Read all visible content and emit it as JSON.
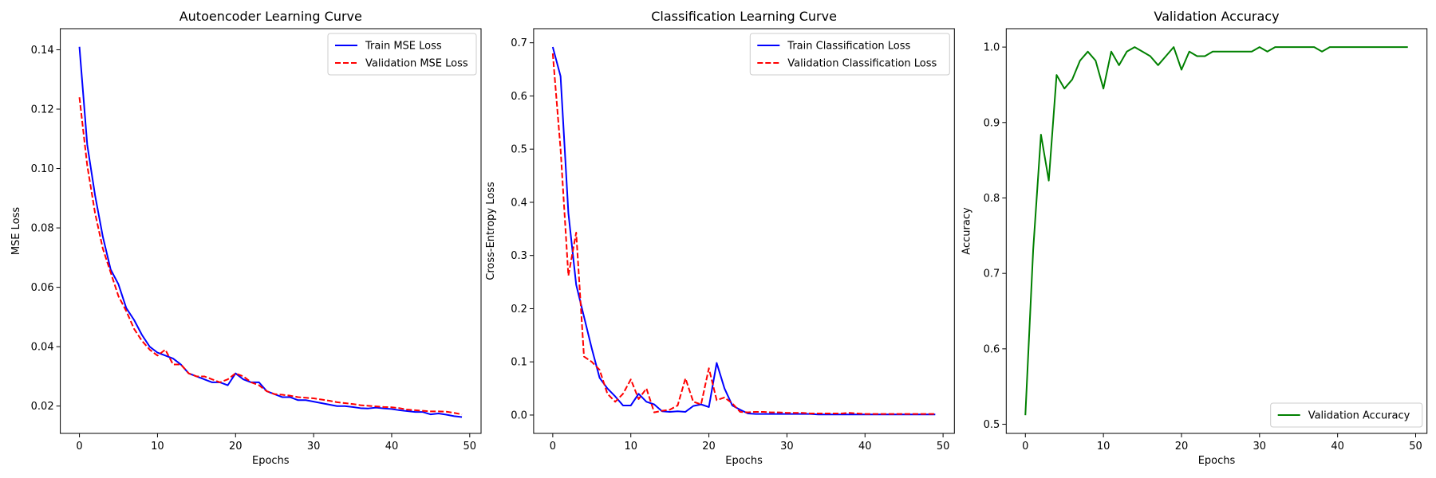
{
  "chart_data": [
    {
      "type": "line",
      "title": "Autoencoder Learning Curve",
      "xlabel": "Epochs",
      "ylabel": "MSE Loss",
      "xlim": [
        -2.45,
        51.45
      ],
      "ylim": [
        0.0108,
        0.1471
      ],
      "xticks": [
        0,
        10,
        20,
        30,
        40,
        50
      ],
      "yticks": [
        0.02,
        0.04,
        0.06,
        0.08,
        0.1,
        0.12,
        0.14
      ],
      "ytick_labels": [
        "0.02",
        "0.04",
        "0.06",
        "0.08",
        "0.10",
        "0.12",
        "0.14"
      ],
      "legend_position": "upper right",
      "series": [
        {
          "name": "Train MSE Loss",
          "color": "#0000ff",
          "dash": "solid",
          "x": [
            0,
            1,
            2,
            3,
            4,
            5,
            6,
            7,
            8,
            9,
            10,
            11,
            12,
            13,
            14,
            15,
            16,
            17,
            18,
            19,
            20,
            21,
            22,
            23,
            24,
            25,
            26,
            27,
            28,
            29,
            30,
            31,
            32,
            33,
            34,
            35,
            36,
            37,
            38,
            39,
            40,
            41,
            42,
            43,
            44,
            45,
            46,
            47,
            48,
            49
          ],
          "y": [
            0.141,
            0.108,
            0.091,
            0.077,
            0.066,
            0.061,
            0.053,
            0.049,
            0.044,
            0.04,
            0.038,
            0.037,
            0.036,
            0.034,
            0.031,
            0.03,
            0.029,
            0.028,
            0.028,
            0.027,
            0.031,
            0.029,
            0.028,
            0.028,
            0.025,
            0.024,
            0.023,
            0.023,
            0.022,
            0.022,
            0.0215,
            0.021,
            0.0205,
            0.02,
            0.02,
            0.0197,
            0.0193,
            0.0192,
            0.0195,
            0.0192,
            0.019,
            0.0186,
            0.0183,
            0.018,
            0.018,
            0.0172,
            0.0175,
            0.0171,
            0.0166,
            0.0163
          ]
        },
        {
          "name": "Validation MSE Loss",
          "color": "#ff0000",
          "dash": "dashed",
          "x": [
            0,
            1,
            2,
            3,
            4,
            5,
            6,
            7,
            8,
            9,
            10,
            11,
            12,
            13,
            14,
            15,
            16,
            17,
            18,
            19,
            20,
            21,
            22,
            23,
            24,
            25,
            26,
            27,
            28,
            29,
            30,
            31,
            32,
            33,
            34,
            35,
            36,
            37,
            38,
            39,
            40,
            41,
            42,
            43,
            44,
            45,
            46,
            47,
            48,
            49
          ],
          "y": [
            0.124,
            0.101,
            0.085,
            0.073,
            0.065,
            0.057,
            0.052,
            0.046,
            0.042,
            0.039,
            0.037,
            0.039,
            0.034,
            0.034,
            0.031,
            0.03,
            0.03,
            0.029,
            0.028,
            0.029,
            0.031,
            0.03,
            0.028,
            0.027,
            0.025,
            0.024,
            0.0238,
            0.0235,
            0.023,
            0.0228,
            0.0226,
            0.0222,
            0.0218,
            0.0213,
            0.021,
            0.0207,
            0.0203,
            0.0201,
            0.0199,
            0.0197,
            0.0196,
            0.0193,
            0.0188,
            0.0186,
            0.0184,
            0.0182,
            0.0182,
            0.0181,
            0.0177,
            0.0172
          ]
        }
      ]
    },
    {
      "type": "line",
      "title": "Classification Learning Curve",
      "xlabel": "Epochs",
      "ylabel": "Cross-Entropy Loss",
      "xlim": [
        -2.45,
        51.45
      ],
      "ylim": [
        -0.0345,
        0.7265
      ],
      "xticks": [
        0,
        10,
        20,
        30,
        40,
        50
      ],
      "yticks": [
        0.0,
        0.1,
        0.2,
        0.3,
        0.4,
        0.5,
        0.6,
        0.7
      ],
      "ytick_labels": [
        "0.0",
        "0.1",
        "0.2",
        "0.3",
        "0.4",
        "0.5",
        "0.6",
        "0.7"
      ],
      "legend_position": "upper right",
      "series": [
        {
          "name": "Train Classification Loss",
          "color": "#0000ff",
          "dash": "solid",
          "x": [
            0,
            1,
            2,
            3,
            4,
            5,
            6,
            7,
            8,
            9,
            10,
            11,
            12,
            13,
            14,
            15,
            16,
            17,
            18,
            19,
            20,
            21,
            22,
            23,
            24,
            25,
            26,
            27,
            28,
            29,
            30,
            31,
            32,
            33,
            34,
            35,
            36,
            37,
            38,
            39,
            40,
            41,
            42,
            43,
            44,
            45,
            46,
            47,
            48,
            49
          ],
          "y": [
            0.692,
            0.637,
            0.38,
            0.245,
            0.185,
            0.125,
            0.07,
            0.05,
            0.035,
            0.018,
            0.018,
            0.04,
            0.025,
            0.02,
            0.007,
            0.006,
            0.007,
            0.006,
            0.017,
            0.02,
            0.015,
            0.098,
            0.05,
            0.018,
            0.01,
            0.003,
            0.002,
            0.002,
            0.002,
            0.002,
            0.002,
            0.002,
            0.002,
            0.002,
            0.001,
            0.001,
            0.001,
            0.001,
            0.001,
            0.001,
            0.001,
            0.001,
            0.001,
            0.001,
            0.001,
            0.001,
            0.001,
            0.001,
            0.001,
            0.001
          ]
        },
        {
          "name": "Validation Classification Loss",
          "color": "#ff0000",
          "dash": "dashed",
          "x": [
            0,
            1,
            2,
            3,
            4,
            5,
            6,
            7,
            8,
            9,
            10,
            11,
            12,
            13,
            14,
            15,
            16,
            17,
            18,
            19,
            20,
            21,
            22,
            23,
            24,
            25,
            26,
            27,
            28,
            29,
            30,
            31,
            32,
            33,
            34,
            35,
            36,
            37,
            38,
            39,
            40,
            41,
            42,
            43,
            44,
            45,
            46,
            47,
            48,
            49
          ],
          "y": [
            0.68,
            0.5,
            0.262,
            0.343,
            0.11,
            0.1,
            0.085,
            0.04,
            0.025,
            0.04,
            0.067,
            0.03,
            0.05,
            0.005,
            0.008,
            0.01,
            0.018,
            0.069,
            0.025,
            0.02,
            0.088,
            0.028,
            0.033,
            0.022,
            0.006,
            0.005,
            0.006,
            0.006,
            0.005,
            0.005,
            0.004,
            0.004,
            0.004,
            0.003,
            0.003,
            0.003,
            0.003,
            0.003,
            0.004,
            0.003,
            0.002,
            0.002,
            0.002,
            0.002,
            0.002,
            0.002,
            0.002,
            0.002,
            0.002,
            0.002
          ]
        }
      ]
    },
    {
      "type": "line",
      "title": "Validation Accuracy",
      "xlabel": "Epochs",
      "ylabel": "Accuracy",
      "xlim": [
        -2.45,
        51.45
      ],
      "ylim": [
        0.4879,
        1.0244
      ],
      "xticks": [
        0,
        10,
        20,
        30,
        40,
        50
      ],
      "yticks": [
        0.5,
        0.6,
        0.7,
        0.8,
        0.9,
        1.0
      ],
      "ytick_labels": [
        "0.5",
        "0.6",
        "0.7",
        "0.8",
        "0.9",
        "1.0"
      ],
      "legend_position": "lower right",
      "series": [
        {
          "name": "Validation Accuracy",
          "color": "#008000",
          "dash": "solid",
          "x": [
            0,
            1,
            2,
            3,
            4,
            5,
            6,
            7,
            8,
            9,
            10,
            11,
            12,
            13,
            14,
            15,
            16,
            17,
            18,
            19,
            20,
            21,
            22,
            23,
            24,
            25,
            26,
            27,
            28,
            29,
            30,
            31,
            32,
            33,
            34,
            35,
            36,
            37,
            38,
            39,
            40,
            41,
            42,
            43,
            44,
            45,
            46,
            47,
            48,
            49
          ],
          "y": [
            0.512,
            0.731,
            0.884,
            0.823,
            0.963,
            0.945,
            0.957,
            0.982,
            0.994,
            0.982,
            0.945,
            0.994,
            0.976,
            0.994,
            1.0,
            0.994,
            0.988,
            0.976,
            0.988,
            1.0,
            0.97,
            0.994,
            0.988,
            0.988,
            0.994,
            0.994,
            0.994,
            0.994,
            0.994,
            0.994,
            1.0,
            0.994,
            1.0,
            1.0,
            1.0,
            1.0,
            1.0,
            1.0,
            0.994,
            1.0,
            1.0,
            1.0,
            1.0,
            1.0,
            1.0,
            1.0,
            1.0,
            1.0,
            1.0,
            1.0
          ]
        }
      ]
    }
  ]
}
